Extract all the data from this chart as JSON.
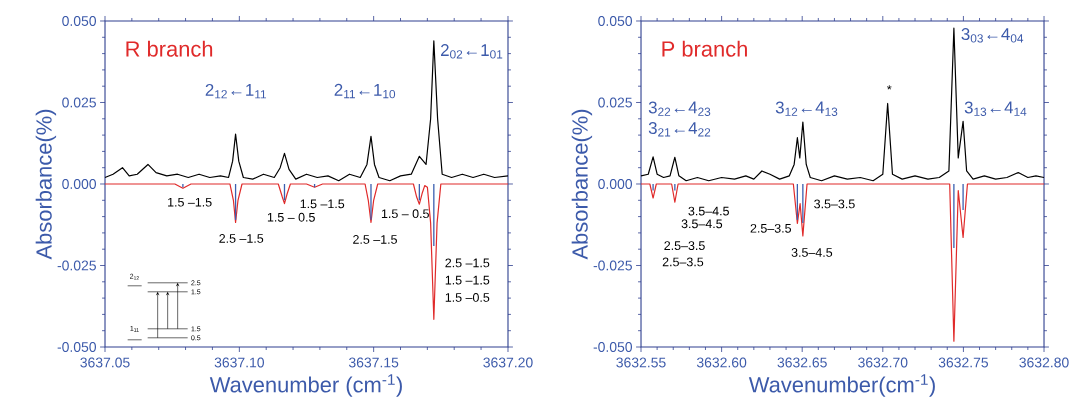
{
  "chart_data": [
    {
      "type": "line",
      "title": "R branch",
      "xlabel": "Wavenumber (cm$^{-1}$)",
      "ylabel": "Absorbance(%)",
      "xlim": [
        3637.05,
        3637.2
      ],
      "ylim": [
        -0.05,
        0.05
      ],
      "xticks": [
        {
          "value": 3637.05,
          "label": "3637.05"
        },
        {
          "value": 3637.1,
          "label": "3637.10"
        },
        {
          "value": 3637.15,
          "label": "3637.15"
        },
        {
          "value": 3637.2,
          "label": "3637.20"
        }
      ],
      "yticks": [
        {
          "value": -0.05,
          "label": "-0.050"
        },
        {
          "value": -0.025,
          "label": "-0.025"
        },
        {
          "value": 0,
          "label": "0.000"
        },
        {
          "value": 0.025,
          "label": "0.025"
        },
        {
          "value": 0.05,
          "label": "0.050"
        }
      ],
      "series": [
        {
          "color": "#e02a2a",
          "x": [
            3637.05,
            3637.076,
            3637.079,
            3637.082,
            3637.0965,
            3637.0978,
            3637.0986,
            3637.0995,
            3637.101,
            3637.1145,
            3637.116,
            3637.1168,
            3637.1178,
            3637.119,
            3637.125,
            3637.128,
            3637.131,
            3637.1468,
            3637.148,
            3637.149,
            3637.15,
            3637.1515,
            3637.1648,
            3637.166,
            3637.167,
            3637.168,
            3637.169,
            3637.17,
            3637.1712,
            3637.1724,
            3637.1736,
            3637.175,
            3637.2
          ],
          "values": [
            0,
            0,
            -0.0013,
            0,
            0,
            -0.005,
            -0.0118,
            -0.005,
            0,
            0,
            -0.004,
            -0.006,
            -0.003,
            0,
            0,
            -0.001,
            0,
            0,
            -0.005,
            -0.0118,
            -0.005,
            0,
            0,
            -0.004,
            -0.0062,
            -0.003,
            -0.0005,
            -0.001,
            -0.012,
            -0.0415,
            -0.012,
            0,
            0
          ]
        },
        {
          "type": "bar",
          "color": "#3b5fb0",
          "x": [
            3637.079,
            3637.0986,
            3637.1168,
            3637.128,
            3637.149,
            3637.167,
            3637.1724
          ],
          "values": [
            -0.001,
            -0.011,
            -0.005,
            -0.001,
            -0.011,
            -0.005,
            -0.019
          ]
        },
        {
          "color": "#000000",
          "x": [
            3637.05,
            3637.053,
            3637.0565,
            3637.059,
            3637.062,
            3637.066,
            3637.069,
            3637.073,
            3637.077,
            3637.081,
            3637.085,
            3637.089,
            3637.093,
            3637.096,
            3637.0975,
            3637.0986,
            3637.0998,
            3637.1015,
            3637.105,
            3637.109,
            3637.113,
            3637.1152,
            3637.1168,
            3637.1185,
            3637.121,
            3637.125,
            3637.129,
            3637.133,
            3637.137,
            3637.141,
            3637.145,
            3637.1475,
            3637.149,
            3637.1503,
            3637.152,
            3637.156,
            3637.16,
            3637.164,
            3637.167,
            3637.1695,
            3637.1712,
            3637.1724,
            3637.1738,
            3637.1755,
            3637.179,
            3637.183,
            3637.187,
            3637.191,
            3637.195,
            3637.2
          ],
          "values": [
            0.002,
            0.003,
            0.005,
            0.0025,
            0.003,
            0.006,
            0.0035,
            0.0025,
            0.003,
            0.002,
            0.003,
            0.002,
            0.0025,
            0.002,
            0.007,
            0.0153,
            0.007,
            0.002,
            0.0015,
            0.003,
            0.002,
            0.005,
            0.0094,
            0.0045,
            0.0015,
            0.003,
            0.002,
            0.0025,
            0.001,
            0.003,
            0.002,
            0.006,
            0.0146,
            0.006,
            0.002,
            0.001,
            0.0025,
            0.003,
            0.0085,
            0.006,
            0.02,
            0.0439,
            0.02,
            0.003,
            0.002,
            0.003,
            0.002,
            0.003,
            0.002,
            0.0025
          ]
        }
      ],
      "annotations": [
        "2$_{12}$←1$_{11}$",
        "2$_{11}$←1$_{10}$",
        "2$_{02}$←1$_{01}$",
        "1.5 –1.5",
        "2.5 –1.5",
        "1.5 – 0.5",
        "1.5 –1.5",
        "1.5 – 0.5",
        "2.5 –1.5",
        "2.5 –1.5",
        "1.5 –1.5",
        "1.5 –0.5",
        "2$_{12}$",
        "1$_{11}$",
        "2.5",
        "1.5",
        "1.5",
        "0.5"
      ]
    },
    {
      "type": "line",
      "title": "P branch",
      "xlabel": "Wavenumber(cm$^{-1}$)",
      "ylabel": "Absorbance(%)",
      "xlim": [
        3632.55,
        3632.8
      ],
      "ylim": [
        -0.05,
        0.05
      ],
      "xticks": [
        {
          "value": 3632.55,
          "label": "3632.55"
        },
        {
          "value": 3632.6,
          "label": "3632.60"
        },
        {
          "value": 3632.65,
          "label": "3632.65"
        },
        {
          "value": 3632.7,
          "label": "3632.70"
        },
        {
          "value": 3632.75,
          "label": "3632.75"
        },
        {
          "value": 3632.8,
          "label": "3632.80"
        }
      ],
      "yticks": [
        {
          "value": -0.05,
          "label": "-0.050"
        },
        {
          "value": -0.025,
          "label": "-0.025"
        },
        {
          "value": 0,
          "label": "0.000"
        },
        {
          "value": 0.025,
          "label": "0.025"
        },
        {
          "value": 0.05,
          "label": "0.050"
        }
      ],
      "series": [
        {
          "color": "#e02a2a",
          "x": [
            3632.55,
            3632.5555,
            3632.5575,
            3632.5595,
            3632.569,
            3632.571,
            3632.573,
            3632.6445,
            3632.647,
            3632.6487,
            3632.6504,
            3632.653,
            3632.7415,
            3632.7441,
            3632.7468,
            3632.7498,
            3632.7525,
            3632.8
          ],
          "values": [
            0,
            0,
            -0.0043,
            0,
            0,
            -0.0056,
            0,
            0,
            -0.0121,
            -0.006,
            -0.0159,
            0,
            0,
            -0.0482,
            -0.002,
            -0.0164,
            0,
            0
          ]
        },
        {
          "type": "bar",
          "color": "#3b5fb0",
          "x": [
            3632.5575,
            3632.571,
            3632.647,
            3632.6504,
            3632.7441,
            3632.7498
          ],
          "values": [
            -0.002,
            -0.002,
            -0.011,
            -0.012,
            -0.0196,
            -0.008
          ]
        },
        {
          "color": "#000000",
          "x": [
            3632.55,
            3632.5545,
            3632.5575,
            3632.56,
            3632.564,
            3632.568,
            3632.571,
            3632.5735,
            3632.578,
            3632.585,
            3632.592,
            3632.6,
            3632.608,
            3632.615,
            3632.62,
            3632.625,
            3632.63,
            3632.636,
            3632.642,
            3632.645,
            3632.647,
            3632.6485,
            3632.6504,
            3632.6525,
            3632.655,
            3632.662,
            3632.67,
            3632.678,
            3632.686,
            3632.694,
            3632.7,
            3632.703,
            3632.706,
            3632.712,
            3632.72,
            3632.728,
            3632.735,
            3632.741,
            3632.7441,
            3632.7468,
            3632.7498,
            3632.752,
            3632.756,
            3632.763,
            3632.77,
            3632.777,
            3632.784,
            3632.79,
            3632.795,
            3632.8
          ],
          "values": [
            0.0025,
            0.003,
            0.0083,
            0.003,
            0.002,
            0.0025,
            0.0082,
            0.0025,
            0.001,
            0.002,
            0.001,
            0.002,
            0.0015,
            0.0025,
            0.0015,
            0.004,
            0.003,
            0.0015,
            0.0025,
            0.006,
            0.0142,
            0.008,
            0.019,
            0.006,
            0.002,
            0.001,
            0.0025,
            0.0015,
            0.002,
            0.001,
            0.003,
            0.0247,
            0.003,
            0.0015,
            0.0025,
            0.0015,
            0.002,
            0.004,
            0.0478,
            0.008,
            0.0192,
            0.004,
            0.0015,
            0.0025,
            0.0015,
            0.002,
            0.0035,
            0.002,
            0.0025,
            0.002
          ]
        }
      ],
      "annotations": [
        "3$_{22}$←4$_{23}$",
        "3$_{21}$←4$_{22}$",
        "3$_{12}$←4$_{13}$",
        "3$_{03}$←4$_{04}$",
        "3$_{13}$←4$_{14}$",
        "*",
        "3.5–4.5",
        "3.5–4.5",
        "2.5–3.5",
        "2.5–3.5",
        "3.5–3.5",
        "2.5–3.5",
        "3.5–4.5"
      ]
    }
  ]
}
